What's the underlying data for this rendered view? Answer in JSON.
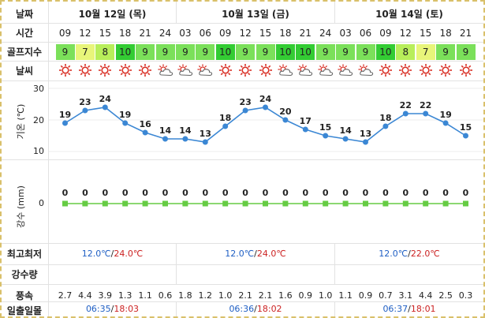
{
  "labels": {
    "date": "날짜",
    "time": "시간",
    "golf": "골프지수",
    "weather": "날씨",
    "temp_axis": "기온 (℃)",
    "rain_axis": "강수 (mm)",
    "minmax": "최고최저",
    "rainfall": "강수량",
    "wind": "풍속",
    "sun": "일출일몰"
  },
  "dates": [
    "10월 12일 (목)",
    "10월 13일 (금)",
    "10월 14일 (토)"
  ],
  "hours": [
    "09",
    "12",
    "15",
    "18",
    "21",
    "24",
    "03",
    "06",
    "09",
    "12",
    "15",
    "18",
    "21",
    "24",
    "03",
    "06",
    "09",
    "12",
    "15",
    "18",
    "21"
  ],
  "golf_index": [
    9,
    7,
    8,
    10,
    9,
    9,
    9,
    9,
    10,
    9,
    9,
    10,
    10,
    9,
    9,
    9,
    10,
    8,
    7,
    9,
    9
  ],
  "golf_colors": {
    "7": "#e8f57a",
    "8": "#b8ee5a",
    "9": "#7be05a",
    "10": "#33cc33"
  },
  "weather_icons": [
    "sun-icon",
    "sun-icon",
    "sun-icon",
    "sun-icon",
    "sun-icon",
    "partly-cloudy-icon",
    "partly-cloudy-icon",
    "partly-cloudy-icon",
    "sun-icon",
    "sun-icon",
    "sun-icon",
    "partly-cloudy-icon",
    "partly-cloudy-icon",
    "partly-cloudy-icon",
    "partly-cloudy-icon",
    "partly-cloudy-icon",
    "sun-icon",
    "sun-icon",
    "sun-icon",
    "sun-icon",
    "sun-icon"
  ],
  "chart_data": [
    {
      "type": "line",
      "ylabel": "기온 (℃)",
      "x": [
        "09",
        "12",
        "15",
        "18",
        "21",
        "24",
        "03",
        "06",
        "09",
        "12",
        "15",
        "18",
        "21",
        "24",
        "03",
        "06",
        "09",
        "12",
        "15",
        "18",
        "21"
      ],
      "values": [
        19,
        23,
        24,
        19,
        16,
        14,
        14,
        13,
        18,
        23,
        24,
        20,
        17,
        15,
        14,
        13,
        18,
        22,
        22,
        19,
        15
      ],
      "yticks": [
        10,
        20,
        30
      ],
      "ylim": [
        10,
        30
      ],
      "color": "#3b87d4"
    },
    {
      "type": "line",
      "ylabel": "강수 (mm)",
      "x": [
        "09",
        "12",
        "15",
        "18",
        "21",
        "24",
        "03",
        "06",
        "09",
        "12",
        "15",
        "18",
        "21",
        "24",
        "03",
        "06",
        "09",
        "12",
        "15",
        "18",
        "21"
      ],
      "values": [
        0,
        0,
        0,
        0,
        0,
        0,
        0,
        0,
        0,
        0,
        0,
        0,
        0,
        0,
        0,
        0,
        0,
        0,
        0,
        0,
        0
      ],
      "yticks": [
        0
      ],
      "color": "#66cc44"
    }
  ],
  "minmax": [
    {
      "low": "12.0℃",
      "sep": "/",
      "high": "24.0℃"
    },
    {
      "low": "12.0℃",
      "sep": "/",
      "high": "24.0℃"
    },
    {
      "low": "12.0℃",
      "sep": "/",
      "high": "22.0℃"
    }
  ],
  "wind": [
    "2.7",
    "4.4",
    "3.9",
    "1.3",
    "1.1",
    "0.6",
    "1.8",
    "1.2",
    "1.0",
    "2.1",
    "2.1",
    "1.6",
    "0.9",
    "1.0",
    "1.1",
    "0.9",
    "0.7",
    "3.1",
    "4.4",
    "2.5",
    "0.3"
  ],
  "sun": [
    {
      "rise": "06:35",
      "sep": "/",
      "set": "18:03"
    },
    {
      "rise": "06:36",
      "sep": "/",
      "set": "18:02"
    },
    {
      "rise": "06:37",
      "sep": "/",
      "set": "18:01"
    }
  ]
}
